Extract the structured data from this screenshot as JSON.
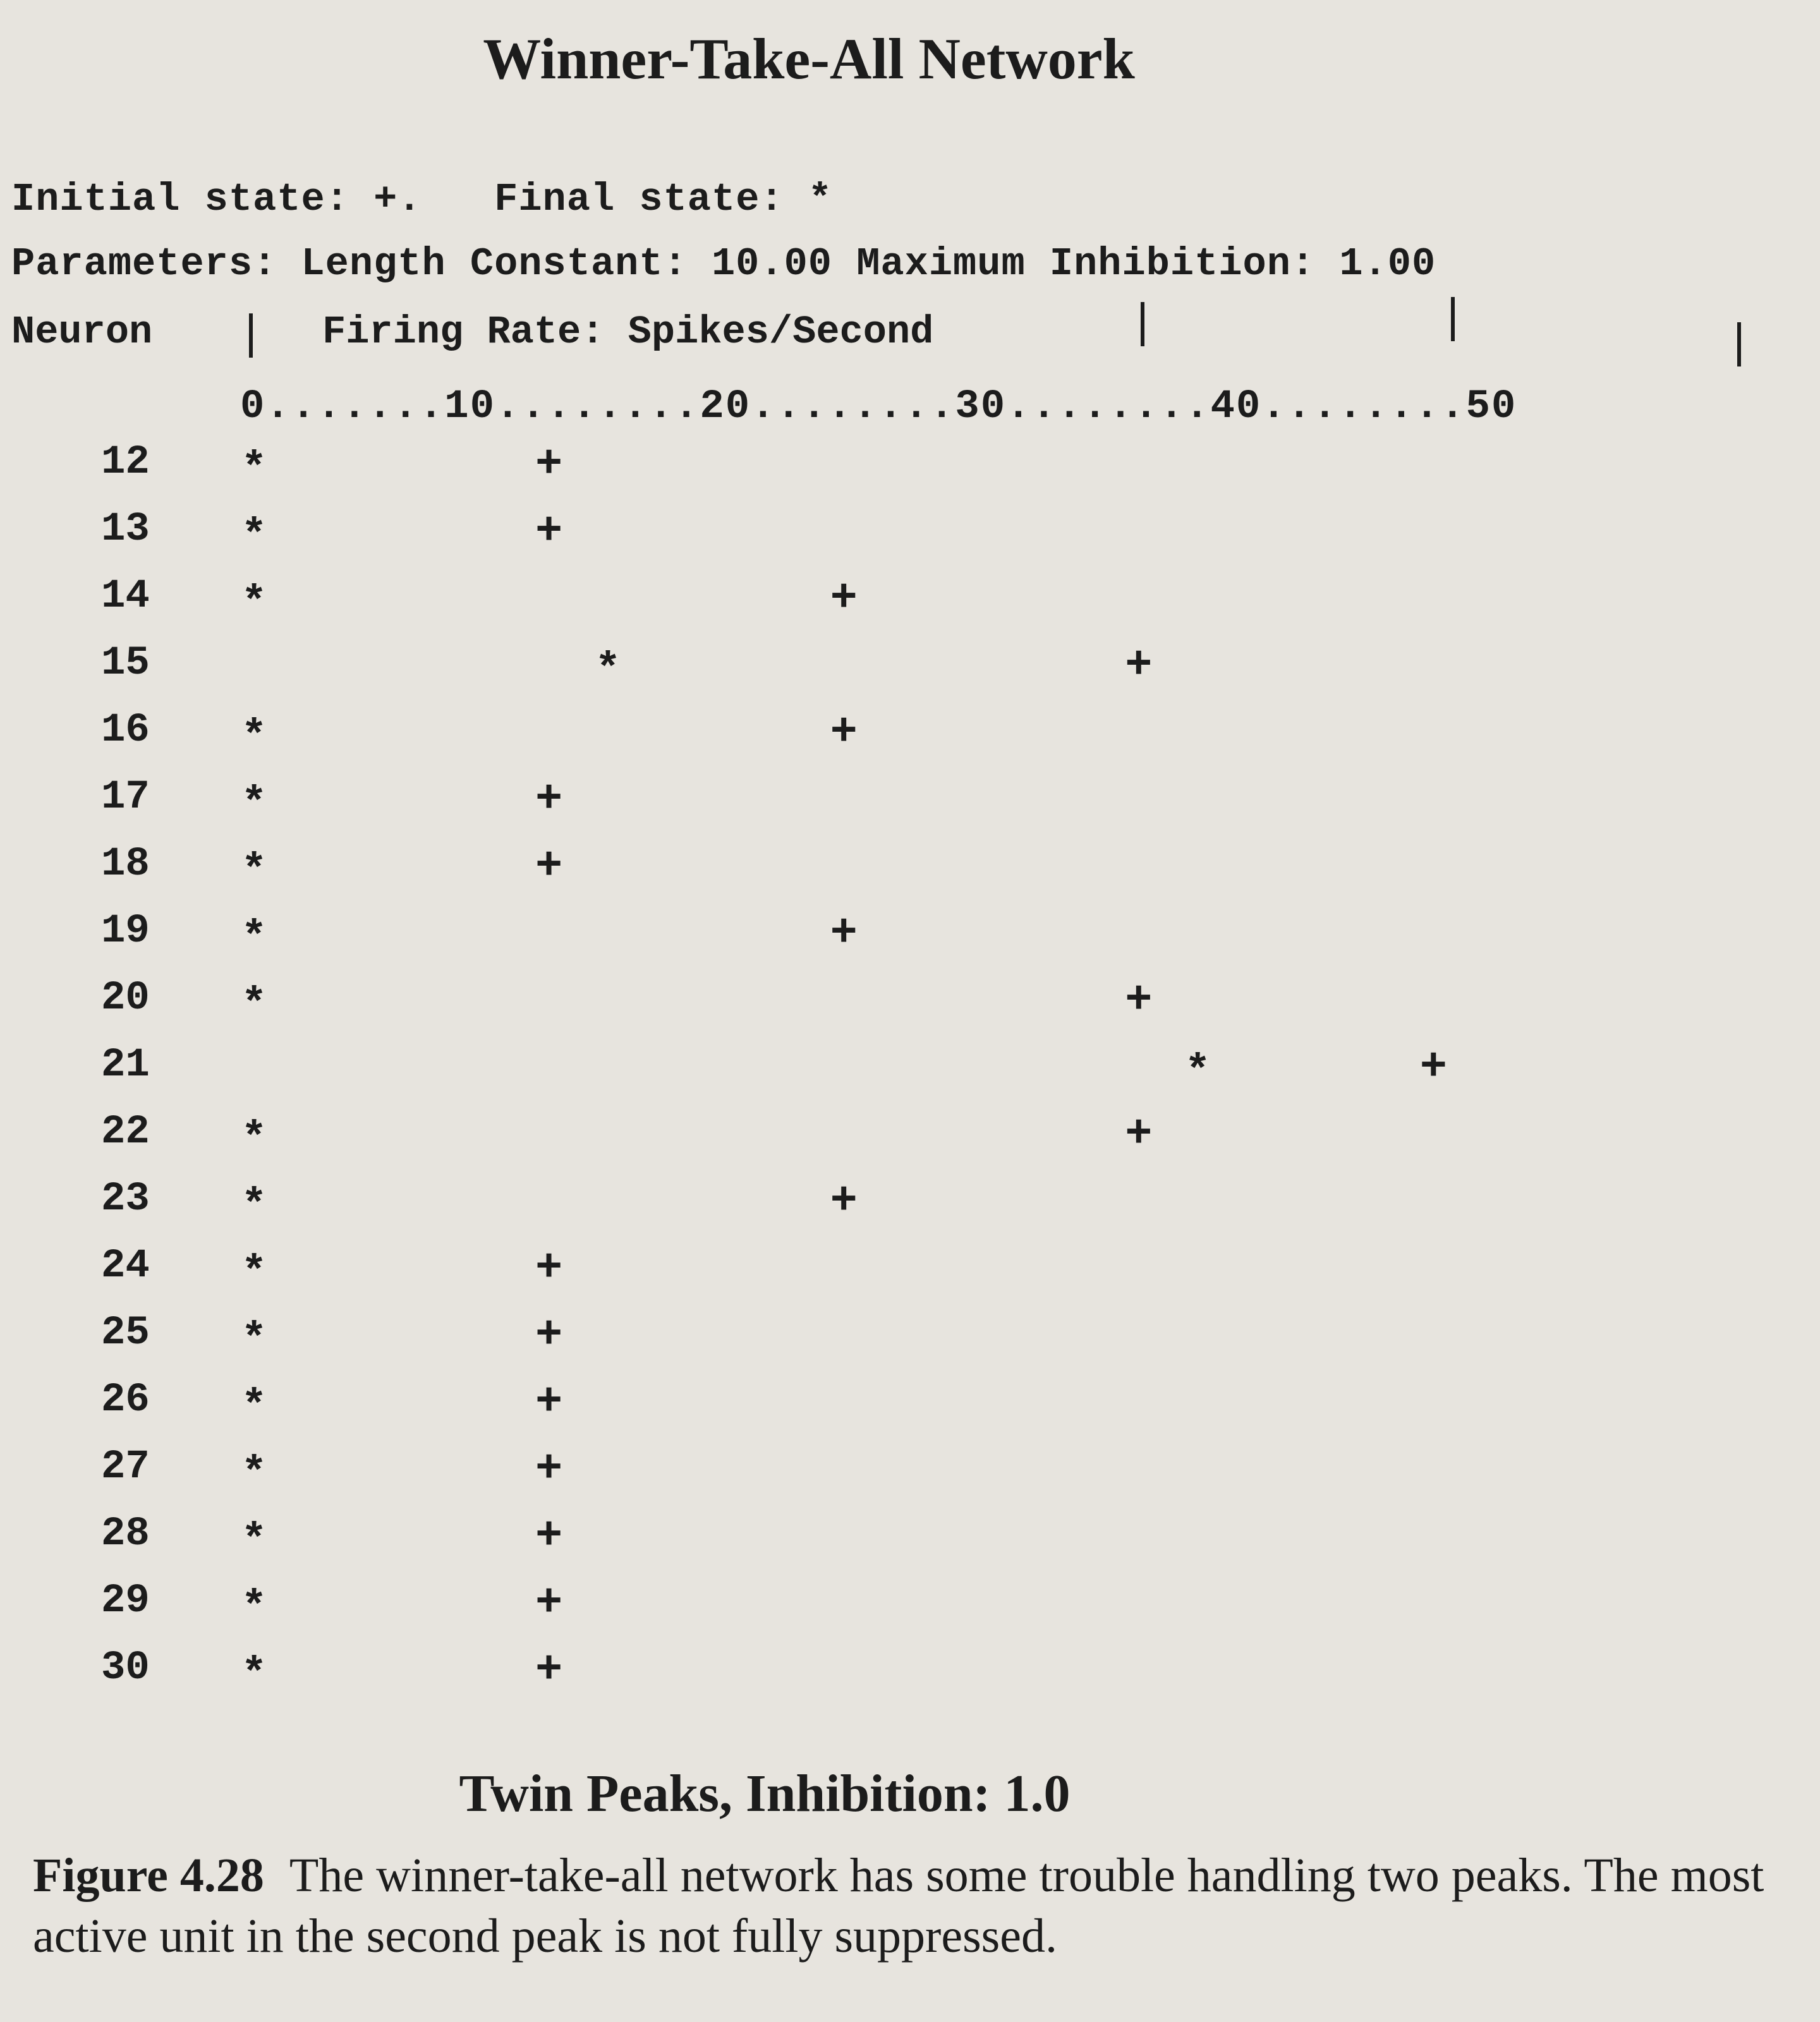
{
  "header": {
    "initial_label": "Initial state: +.",
    "final_label": "Final state: *",
    "parameters_label": "Parameters: Length Constant: 10.00 Maximum Inhibition: 1.00",
    "neuron_label": "Neuron",
    "rate_label": "Firing Rate: Spikes/Second"
  },
  "chart_data": {
    "type": "scatter",
    "title": "Winner-Take-All Network",
    "xlabel": "Firing Rate: Spikes/Second",
    "ylabel": "Neuron",
    "xlim": [
      0,
      50
    ],
    "x_tick_labels": [
      "0",
      "10",
      "20",
      "30",
      "40",
      "50"
    ],
    "x_axis_text": "0.......10........20........30........40........50",
    "categories": [
      12,
      13,
      14,
      15,
      16,
      17,
      18,
      19,
      20,
      21,
      22,
      23,
      24,
      25,
      26,
      27,
      28,
      29,
      30
    ],
    "series": [
      {
        "name": "Initial state",
        "marker": "+",
        "values": [
          10,
          10,
          20,
          30,
          20,
          10,
          10,
          20,
          30,
          40,
          30,
          20,
          10,
          10,
          10,
          10,
          10,
          10,
          10
        ]
      },
      {
        "name": "Final state",
        "marker": "*",
        "values": [
          0,
          0,
          0,
          12,
          0,
          0,
          0,
          0,
          0,
          32,
          0,
          0,
          0,
          0,
          0,
          0,
          0,
          0,
          0
        ]
      }
    ],
    "grid": false,
    "legend": "top-left"
  },
  "captions": {
    "sub_caption": "Twin Peaks, Inhibition: 1.0",
    "figure_label": "Figure 4.28",
    "figure_text": "The winner-take-all network has some trouble handling two peaks. The most active unit in the second peak is not fully suppressed."
  }
}
